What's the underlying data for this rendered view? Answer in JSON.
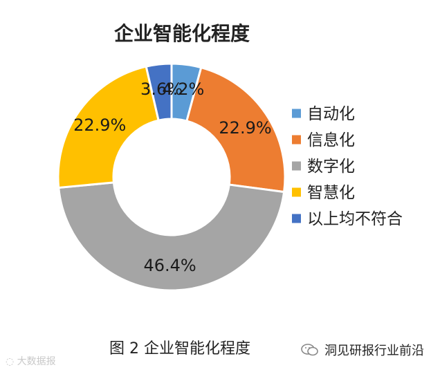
{
  "chart_data": {
    "type": "pie",
    "variant": "donut",
    "title": "企业智能化程度",
    "categories": [
      "自动化",
      "信息化",
      "数字化",
      "智慧化",
      "以上均不符合"
    ],
    "values": [
      4.2,
      22.9,
      46.4,
      22.9,
      3.6
    ],
    "labels": [
      "4.2%",
      "22.9%",
      "46.4%",
      "22.9%",
      "3.6%"
    ],
    "colors": [
      "#5B9BD5",
      "#ED7D31",
      "#A5A5A5",
      "#FFC000",
      "#4472C4"
    ],
    "legend_position": "right",
    "start_angle_deg": 0
  },
  "caption": "图 2 企业智能化程度",
  "watermark_left": "大数据报",
  "watermark_right": "洞见研报行业前沿"
}
